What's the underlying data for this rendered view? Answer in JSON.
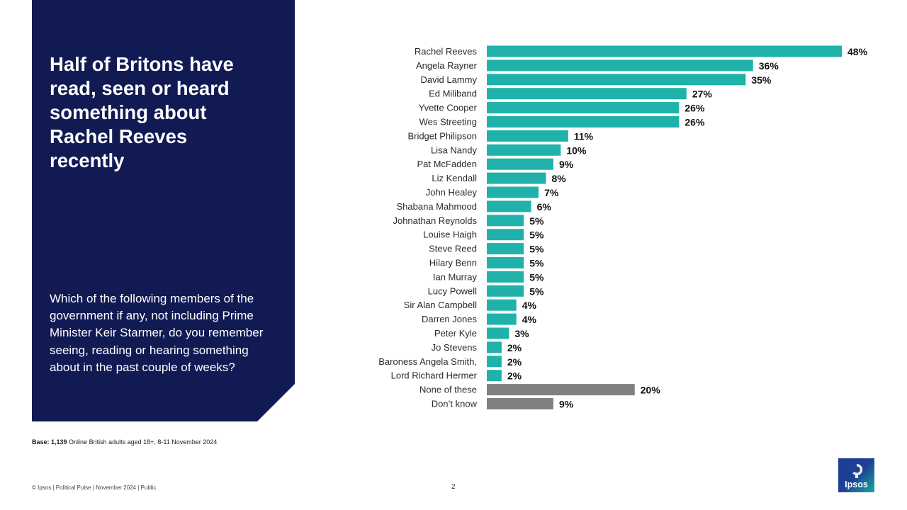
{
  "left_panel": {
    "headline": "Half of Britons have read, seen or heard something about Rachel Reeves recently",
    "question": "Which of the following members of the government if any, not including Prime Minister Keir Starmer, do you remember seeing, reading or hearing something about in the past couple of weeks?",
    "background_color": "#121a54"
  },
  "chart_data": {
    "type": "bar",
    "orientation": "horizontal",
    "categories": [
      "Rachel Reeves",
      "Angela Rayner",
      "David Lammy",
      "Ed Miliband",
      "Yvette Cooper",
      "Wes Streeting",
      "Bridget Philipson",
      "Lisa Nandy",
      "Pat McFadden",
      "Liz Kendall",
      "John Healey",
      "Shabana Mahmood",
      "Johnathan Reynolds",
      "Louise Haigh",
      "Steve Reed",
      "Hilary Benn",
      "Ian Murray",
      "Lucy Powell",
      "Sir Alan Campbell",
      "Darren Jones",
      "Peter Kyle",
      "Jo Stevens",
      "Baroness Angela Smith,",
      "Lord Richard Hermer",
      "None of these",
      "Don’t know"
    ],
    "values": [
      48,
      36,
      35,
      27,
      26,
      26,
      11,
      10,
      9,
      8,
      7,
      6,
      5,
      5,
      5,
      5,
      5,
      5,
      4,
      4,
      3,
      2,
      2,
      2,
      20,
      9
    ],
    "value_labels": [
      "48%",
      "36%",
      "35%",
      "27%",
      "26%",
      "26%",
      "11%",
      "10%",
      "9%",
      "8%",
      "7%",
      "6%",
      "5%",
      "5%",
      "5%",
      "5%",
      "5%",
      "5%",
      "4%",
      "4%",
      "3%",
      "2%",
      "2%",
      "2%",
      "20%",
      "9%"
    ],
    "bar_colors": [
      "#20b2aa",
      "#20b2aa",
      "#20b2aa",
      "#20b2aa",
      "#20b2aa",
      "#20b2aa",
      "#20b2aa",
      "#20b2aa",
      "#20b2aa",
      "#20b2aa",
      "#20b2aa",
      "#20b2aa",
      "#20b2aa",
      "#20b2aa",
      "#20b2aa",
      "#20b2aa",
      "#20b2aa",
      "#20b2aa",
      "#20b2aa",
      "#20b2aa",
      "#20b2aa",
      "#20b2aa",
      "#20b2aa",
      "#20b2aa",
      "#808080",
      "#808080"
    ],
    "xlim": [
      0,
      48
    ],
    "title": "",
    "xlabel": "",
    "ylabel": "",
    "grid": false,
    "legend": "none"
  },
  "base_note": {
    "prefix": "Base: 1,139",
    "text": " Online British adults aged 18+,  8-11 November 2024"
  },
  "footer": {
    "left": "© Ipsos | Political Pulse | November 2024 | Public",
    "page_number": "2"
  },
  "logo": {
    "text": "Ipsos",
    "colors": [
      "#1f3f95",
      "#17a99a"
    ]
  }
}
